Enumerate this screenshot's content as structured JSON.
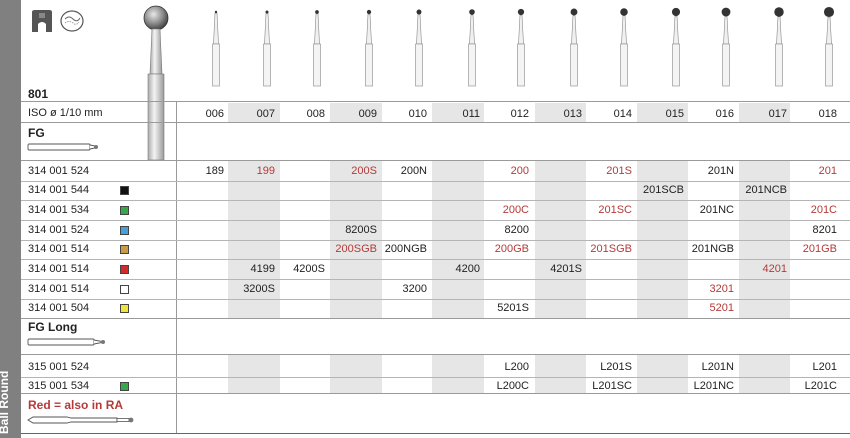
{
  "product": {
    "model": "801",
    "iso_label": "ISO ø 1/10 mm",
    "sidebar_text": "Ball  Round",
    "note": "Red = also in RA"
  },
  "sizes": [
    "006",
    "007",
    "008",
    "009",
    "010",
    "011",
    "012",
    "013",
    "014",
    "015",
    "016",
    "017",
    "018"
  ],
  "sections": [
    {
      "title": "FG"
    },
    {
      "title": "FG Long"
    }
  ],
  "rows": [
    {
      "ref": "314 001 524",
      "swatch": "",
      "cells": [
        "189",
        "199",
        "",
        "200S",
        "200N",
        "",
        "200",
        "",
        "201S",
        "",
        "201N",
        "",
        "201"
      ],
      "red": [
        false,
        true,
        false,
        true,
        false,
        false,
        true,
        false,
        true,
        false,
        false,
        false,
        true
      ]
    },
    {
      "ref": "314 001 544",
      "swatch": "#111111",
      "cells": [
        "",
        "",
        "",
        "",
        "",
        "",
        "",
        "",
        "",
        "201SCB",
        "",
        "201NCB",
        ""
      ],
      "red": [
        false,
        false,
        false,
        false,
        false,
        false,
        false,
        false,
        false,
        false,
        false,
        false,
        false
      ]
    },
    {
      "ref": "314 001 534",
      "swatch": "#3aa84a",
      "cells": [
        "",
        "",
        "",
        "",
        "",
        "",
        "200C",
        "",
        "201SC",
        "",
        "201NC",
        "",
        "201C"
      ],
      "red": [
        false,
        false,
        false,
        false,
        false,
        false,
        true,
        false,
        true,
        false,
        false,
        false,
        true
      ]
    },
    {
      "ref": "314 001 524",
      "swatch": "#4a9fd8",
      "cells": [
        "",
        "",
        "",
        "8200S",
        "",
        "",
        "8200",
        "",
        "",
        "",
        "",
        "",
        "8201"
      ],
      "red": [
        false,
        false,
        false,
        false,
        false,
        false,
        false,
        false,
        false,
        false,
        false,
        false,
        false
      ]
    },
    {
      "ref": "314 001 514",
      "swatch": "#c99a48",
      "cells": [
        "",
        "",
        "",
        "200SGB",
        "200NGB",
        "",
        "200GB",
        "",
        "201SGB",
        "",
        "201NGB",
        "",
        "201GB"
      ],
      "red": [
        false,
        false,
        false,
        true,
        false,
        false,
        true,
        false,
        true,
        false,
        false,
        false,
        true
      ]
    },
    {
      "ref": "314 001 514",
      "swatch": "#d42a2a",
      "cells": [
        "",
        "4199",
        "4200S",
        "",
        "",
        "4200",
        "",
        "4201S",
        "",
        "",
        "",
        "4201",
        ""
      ],
      "red": [
        false,
        false,
        false,
        false,
        false,
        false,
        false,
        false,
        false,
        false,
        false,
        true,
        false
      ]
    },
    {
      "ref": "314 001 514",
      "swatch": "#ffffff",
      "cells": [
        "",
        "3200S",
        "",
        "",
        "3200",
        "",
        "",
        "",
        "",
        "",
        "3201",
        "",
        ""
      ],
      "red": [
        false,
        false,
        false,
        false,
        false,
        false,
        false,
        false,
        false,
        false,
        true,
        false,
        false
      ]
    },
    {
      "ref": "314 001 504",
      "swatch": "#f2e33a",
      "cells": [
        "",
        "",
        "",
        "",
        "",
        "",
        "5201S",
        "",
        "",
        "",
        "5201",
        "",
        ""
      ],
      "red": [
        false,
        false,
        false,
        false,
        false,
        false,
        false,
        false,
        false,
        false,
        true,
        false,
        false
      ]
    },
    {
      "ref": "315 001 524",
      "swatch": "",
      "cells": [
        "",
        "",
        "",
        "",
        "",
        "",
        "L200",
        "",
        "L201S",
        "",
        "L201N",
        "",
        "L201"
      ],
      "red": [
        false,
        false,
        false,
        false,
        false,
        false,
        false,
        false,
        false,
        false,
        false,
        false,
        false
      ]
    },
    {
      "ref": "315 001 534",
      "swatch": "#3aa84a",
      "cells": [
        "",
        "",
        "",
        "",
        "",
        "",
        "L200C",
        "",
        "L201SC",
        "",
        "L201NC",
        "",
        "L201C"
      ],
      "red": [
        false,
        false,
        false,
        false,
        false,
        false,
        false,
        false,
        false,
        false,
        false,
        false,
        false
      ]
    }
  ],
  "colors": {
    "sidebar": "#808080",
    "band": "#e6e6e6",
    "red_text": "#b43a3a"
  },
  "icons": [
    "handpiece-fg-icon",
    "diamond-grit-icon"
  ]
}
